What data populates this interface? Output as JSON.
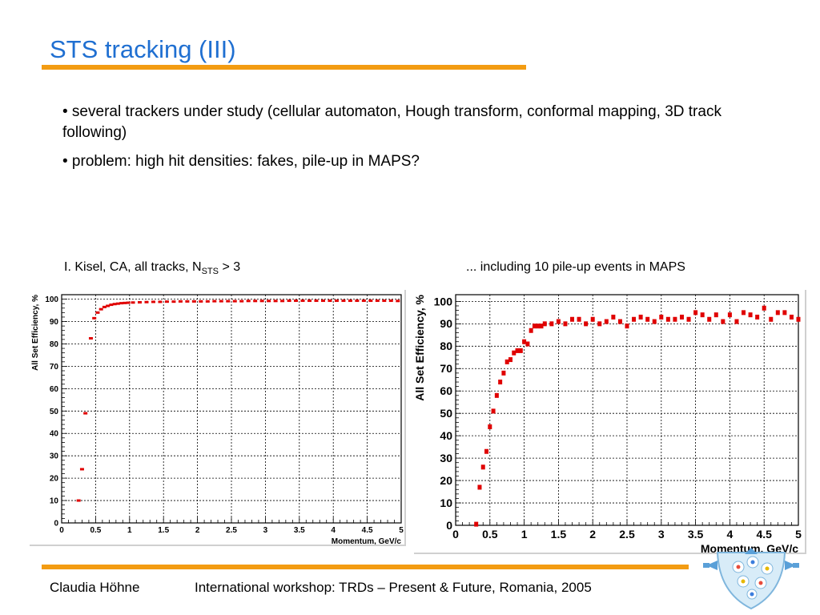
{
  "slide": {
    "title": "STS tracking (III)",
    "bullets": [
      "• several trackers under study (cellular automaton, Hough transform, conformal mapping, 3D track following)",
      "• problem: high hit densities: fakes, pile-up in MAPS?"
    ],
    "caption_left": {
      "prefix": "I. Kisel, CA, all tracks, N",
      "sub": "STS",
      "suffix": " > 3"
    },
    "caption_right": "... including 10 pile-up events in MAPS",
    "footer_author": "Claudia Höhne",
    "footer_event": "International workshop: TRDs – Present & Future, Romania, 2005"
  },
  "colors": {
    "title": "#1f6fd1",
    "rule": "#f39c12",
    "marker": "#e00000"
  },
  "chart_data": [
    {
      "type": "scatter",
      "title": "",
      "xlabel": "Momentum, GeV/c",
      "ylabel": "All Set Efficiency, %",
      "xlim": [
        0,
        5
      ],
      "ylim": [
        0,
        102
      ],
      "xticks": [
        0,
        0.5,
        1,
        1.5,
        2,
        2.5,
        3,
        3.5,
        4,
        4.5,
        5
      ],
      "xtick_labels": [
        "0",
        "0.5",
        "1",
        "1.5",
        "2",
        "2.5",
        "3",
        "3.5",
        "4",
        "4.5",
        "5"
      ],
      "yticks": [
        0,
        10,
        20,
        30,
        40,
        50,
        60,
        70,
        80,
        90,
        100
      ],
      "ytick_labels": [
        "0",
        "10",
        "20",
        "30",
        "40",
        "50",
        "60",
        "70",
        "80",
        "90",
        "100"
      ],
      "grid": true,
      "x": [
        0.25,
        0.3,
        0.35,
        0.43,
        0.48,
        0.53,
        0.58,
        0.63,
        0.68,
        0.73,
        0.78,
        0.83,
        0.88,
        0.93,
        0.98,
        1.05,
        1.15,
        1.25,
        1.35,
        1.45,
        1.55,
        1.65,
        1.75,
        1.85,
        1.95,
        2.05,
        2.15,
        2.25,
        2.35,
        2.45,
        2.55,
        2.65,
        2.75,
        2.85,
        2.95,
        3.05,
        3.15,
        3.25,
        3.35,
        3.45,
        3.55,
        3.65,
        3.75,
        3.85,
        3.95,
        4.05,
        4.15,
        4.25,
        4.35,
        4.45,
        4.55,
        4.65,
        4.75,
        4.85,
        4.95
      ],
      "y": [
        10,
        24,
        49,
        82.5,
        91.5,
        94,
        95.5,
        96.5,
        97,
        97.5,
        97.8,
        98,
        98.2,
        98.3,
        98.4,
        98.5,
        98.6,
        98.7,
        98.8,
        98.8,
        98.9,
        98.9,
        99,
        99,
        99,
        99,
        99,
        99.1,
        99.1,
        99.1,
        99.1,
        99.1,
        99.2,
        99.2,
        99.2,
        99.2,
        99.2,
        99.2,
        99.3,
        99.3,
        99.3,
        99.3,
        99.3,
        99.3,
        99.3,
        99.3,
        99.3,
        99.3,
        99.3,
        99.3,
        99.3,
        99.3,
        99.3,
        99.3,
        99.2
      ]
    },
    {
      "type": "scatter",
      "title": "",
      "xlabel": "Momentum, GeV/c",
      "ylabel": "All Set Efficiency, %",
      "xlim": [
        0,
        5
      ],
      "ylim": [
        0,
        103
      ],
      "xticks": [
        0,
        0.5,
        1,
        1.5,
        2,
        2.5,
        3,
        3.5,
        4,
        4.5,
        5
      ],
      "xtick_labels": [
        "0",
        "0.5",
        "1",
        "1.5",
        "2",
        "2.5",
        "3",
        "3.5",
        "4",
        "4.5",
        "5"
      ],
      "yticks": [
        0,
        10,
        20,
        30,
        40,
        50,
        60,
        70,
        80,
        90,
        100
      ],
      "ytick_labels": [
        "0",
        "10",
        "20",
        "30",
        "40",
        "50",
        "60",
        "70",
        "80",
        "90",
        "100"
      ],
      "grid": true,
      "x": [
        0.3,
        0.35,
        0.4,
        0.45,
        0.5,
        0.55,
        0.6,
        0.65,
        0.7,
        0.75,
        0.8,
        0.85,
        0.9,
        0.95,
        1.0,
        1.05,
        1.1,
        1.15,
        1.2,
        1.25,
        1.3,
        1.4,
        1.5,
        1.6,
        1.7,
        1.8,
        1.9,
        2.0,
        2.1,
        2.2,
        2.3,
        2.4,
        2.5,
        2.6,
        2.7,
        2.8,
        2.9,
        3.0,
        3.1,
        3.2,
        3.3,
        3.4,
        3.5,
        3.6,
        3.7,
        3.8,
        3.9,
        4.0,
        4.1,
        4.2,
        4.3,
        4.4,
        4.5,
        4.6,
        4.7,
        4.8,
        4.9,
        5.0
      ],
      "y": [
        0.5,
        17,
        26,
        33,
        44,
        51,
        58,
        64,
        68,
        73,
        74,
        77,
        78,
        78,
        82,
        81,
        87,
        89,
        89,
        89,
        90,
        90,
        91,
        90,
        92,
        92,
        90,
        92,
        90,
        91,
        93,
        91,
        89,
        92,
        93,
        92,
        91,
        93,
        92,
        92,
        93,
        92,
        95,
        94,
        92,
        94,
        91,
        94,
        91,
        95,
        94,
        93,
        97,
        92,
        95,
        95,
        93,
        92
      ]
    }
  ]
}
